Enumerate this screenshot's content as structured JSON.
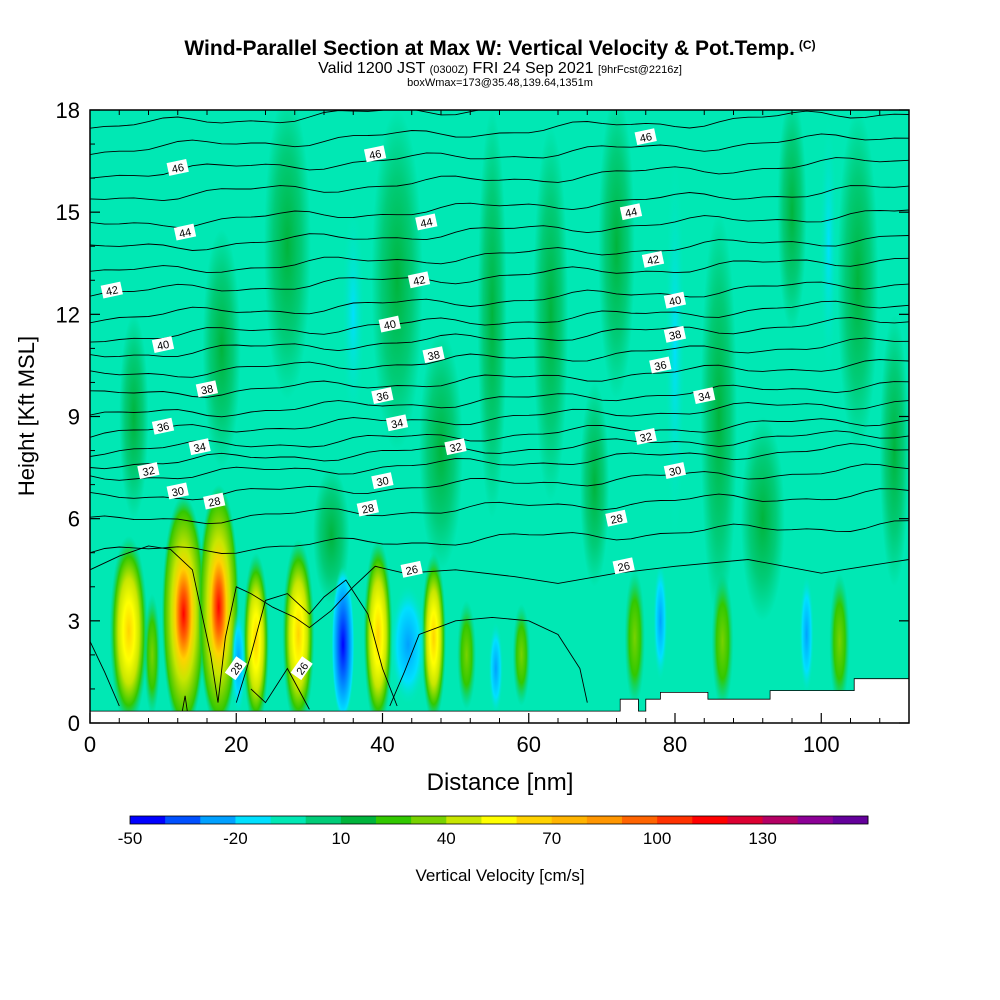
{
  "header": {
    "title": "Wind-Parallel Section at Max W: Vertical Velocity & Pot.Temp.",
    "copyright": "(C)",
    "valid_prefix": "Valid 1200 JST",
    "valid_utc": "(0300Z)",
    "valid_date": "FRI 24 Sep 2021",
    "forecast": "[9hrFcst@2216z]",
    "box_info": "boxWmax=173@35.48,139.64,1351m"
  },
  "colors": {
    "background_field": "#00e8b4",
    "colorbar": [
      "#0000ff",
      "#0050ff",
      "#00a0ff",
      "#00e0ff",
      "#00e8b4",
      "#00cc78",
      "#00b43c",
      "#32c800",
      "#78d200",
      "#c8e600",
      "#ffff00",
      "#ffd200",
      "#ffb400",
      "#ff9600",
      "#ff6400",
      "#ff3200",
      "#ff0000",
      "#dc0032",
      "#b40064",
      "#8c0096",
      "#64009b"
    ]
  },
  "chart_data": {
    "type": "heatmap",
    "xlabel": "Distance [nm]",
    "ylabel": "Height [Kft MSL]",
    "xlim": [
      0,
      112
    ],
    "ylim": [
      0,
      18
    ],
    "x_ticks": [
      "0",
      "20",
      "40",
      "60",
      "80",
      "100"
    ],
    "y_ticks": [
      "0",
      "3",
      "6",
      "9",
      "12",
      "15",
      "18"
    ],
    "colorbar": {
      "label": "Vertical Velocity [cm/s]",
      "tick_labels": [
        "-50",
        "-20",
        "10",
        "40",
        "70",
        "100",
        "130"
      ]
    },
    "theta_contour_labels": [
      {
        "x": 12,
        "y": 16.3,
        "text": "46"
      },
      {
        "x": 39,
        "y": 16.7,
        "text": "46"
      },
      {
        "x": 76,
        "y": 17.2,
        "text": "46"
      },
      {
        "x": 13,
        "y": 14.4,
        "text": "44"
      },
      {
        "x": 46,
        "y": 14.7,
        "text": "44"
      },
      {
        "x": 74,
        "y": 15.0,
        "text": "44"
      },
      {
        "x": 3,
        "y": 12.7,
        "text": "42"
      },
      {
        "x": 45,
        "y": 13.0,
        "text": "42"
      },
      {
        "x": 77,
        "y": 13.6,
        "text": "42"
      },
      {
        "x": 10,
        "y": 11.1,
        "text": "40"
      },
      {
        "x": 41,
        "y": 11.7,
        "text": "40"
      },
      {
        "x": 80,
        "y": 12.4,
        "text": "40"
      },
      {
        "x": 16,
        "y": 9.8,
        "text": "38"
      },
      {
        "x": 47,
        "y": 10.8,
        "text": "38"
      },
      {
        "x": 80,
        "y": 11.4,
        "text": "38"
      },
      {
        "x": 10,
        "y": 8.7,
        "text": "36"
      },
      {
        "x": 40,
        "y": 9.6,
        "text": "36"
      },
      {
        "x": 78,
        "y": 10.5,
        "text": "36"
      },
      {
        "x": 15,
        "y": 8.1,
        "text": "34"
      },
      {
        "x": 42,
        "y": 8.8,
        "text": "34"
      },
      {
        "x": 84,
        "y": 9.6,
        "text": "34"
      },
      {
        "x": 8,
        "y": 7.4,
        "text": "32"
      },
      {
        "x": 50,
        "y": 8.1,
        "text": "32"
      },
      {
        "x": 76,
        "y": 8.4,
        "text": "32"
      },
      {
        "x": 12,
        "y": 6.8,
        "text": "30"
      },
      {
        "x": 40,
        "y": 7.1,
        "text": "30"
      },
      {
        "x": 80,
        "y": 7.4,
        "text": "30"
      },
      {
        "x": 17,
        "y": 6.5,
        "text": "28"
      },
      {
        "x": 38,
        "y": 6.3,
        "text": "28"
      },
      {
        "x": 72,
        "y": 6.0,
        "text": "28"
      },
      {
        "x": 44,
        "y": 4.5,
        "text": "26"
      },
      {
        "x": 73,
        "y": 4.6,
        "text": "26"
      },
      {
        "x": 20,
        "y": 1.6,
        "text": "28"
      },
      {
        "x": 29,
        "y": 1.6,
        "text": "26"
      }
    ]
  }
}
